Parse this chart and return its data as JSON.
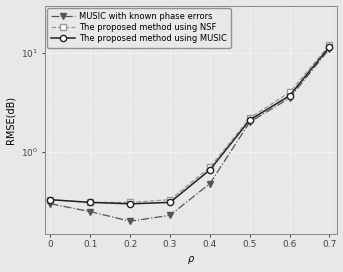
{
  "rho": [
    0,
    0.1,
    0.2,
    0.3,
    0.4,
    0.5,
    0.6,
    0.7
  ],
  "music_known": [
    0.3,
    0.25,
    0.2,
    0.23,
    0.48,
    2.0,
    3.5,
    11.0
  ],
  "proposed_nsf": [
    0.33,
    0.31,
    0.31,
    0.33,
    0.7,
    2.2,
    4.0,
    12.0
  ],
  "proposed_music": [
    0.33,
    0.31,
    0.3,
    0.31,
    0.66,
    2.1,
    3.7,
    11.5
  ],
  "colors": {
    "music_known": "#555555",
    "proposed_nsf": "#999999",
    "proposed_music": "#222222"
  },
  "labels": {
    "music_known": "MUSIC with known phase errors",
    "proposed_nsf": "The proposed method using NSF",
    "proposed_music": "The proposed method using MUSIC"
  },
  "xlabel": "\\rho",
  "ylabel": "RMSE(dB)",
  "xlim": [
    -0.015,
    0.72
  ],
  "ylim_log": [
    0.15,
    30
  ],
  "xticks": [
    0,
    0.1,
    0.2,
    0.3,
    0.4,
    0.5,
    0.6,
    0.7
  ],
  "background_color": "#e8e8e8",
  "plot_bg_color": "#e8e8e8",
  "grid_color": "#ffffff",
  "label_fontsize": 7,
  "tick_fontsize": 6.5,
  "legend_fontsize": 6.0
}
